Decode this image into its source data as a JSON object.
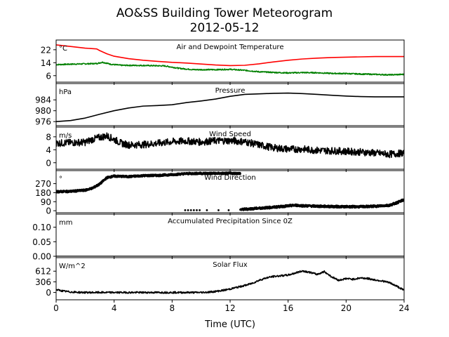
{
  "chart_data": {
    "type": "line",
    "title": "AO&SS Building Tower Meteorogram",
    "subtitle": "2012-05-12",
    "xlabel": "Time (UTC)",
    "xlim": [
      0,
      24
    ],
    "xticks": [
      "0",
      "4",
      "8",
      "12",
      "16",
      "20",
      "24"
    ],
    "panels": [
      {
        "id": "temp",
        "title": "Air and Dewpoint Temperature",
        "unit": "°C",
        "ylim": [
          2,
          28
        ],
        "yticks": [
          {
            "v": 6,
            "label": "6"
          },
          {
            "v": 14,
            "label": "14"
          },
          {
            "v": 22,
            "label": "22"
          }
        ],
        "series": [
          {
            "color": "#ff0000",
            "style": "line",
            "x": [
              0,
              1,
              2,
              2.8,
              3,
              3.5,
              4,
              5,
              6,
              7,
              8,
              9,
              10,
              11,
              12,
              13,
              14,
              15,
              16,
              17,
              18,
              19,
              20,
              21,
              22,
              23,
              24
            ],
            "y": [
              25,
              24,
              23,
              22.5,
              21.5,
              19.5,
              18,
              16.5,
              15.5,
              14.8,
              14.2,
              13.8,
              13.2,
              12.6,
              12.2,
              12.4,
              13.3,
              14.5,
              15.5,
              16.3,
              16.8,
              17.2,
              17.4,
              17.6,
              17.8,
              17.8,
              17.8
            ]
          },
          {
            "color": "#008000",
            "style": "line",
            "noise": 0.35,
            "x": [
              0,
              1,
              2,
              2.8,
              3.2,
              3.8,
              4.5,
              6,
              7.5,
              8.5,
              9.5,
              11,
              12,
              13,
              14,
              15,
              16,
              17,
              18,
              19,
              20,
              21,
              22,
              23,
              24
            ],
            "y": [
              12.8,
              13.1,
              13.3,
              13.5,
              14.3,
              13.0,
              12.4,
              12.3,
              12.0,
              10.5,
              9.7,
              9.7,
              9.9,
              9.3,
              8.4,
              8.0,
              7.7,
              7.9,
              7.8,
              7.4,
              7.3,
              7.0,
              6.8,
              6.5,
              6.8
            ]
          }
        ]
      },
      {
        "id": "pressure",
        "title": "Pressure",
        "unit": "hPa",
        "ylim": [
          974.5,
          990
        ],
        "yticks": [
          {
            "v": 976,
            "label": "976"
          },
          {
            "v": 980,
            "label": "980"
          },
          {
            "v": 984,
            "label": "984"
          }
        ],
        "series": [
          {
            "color": "#000000",
            "style": "line",
            "x": [
              0,
              1,
              2,
              3,
              4,
              5,
              6,
              7,
              8,
              9,
              10,
              11,
              12,
              13,
              14,
              15,
              16,
              17,
              18,
              19,
              20,
              21,
              22,
              23,
              24
            ],
            "y": [
              976,
              976.4,
              977.3,
              978.7,
              980.0,
              981.0,
              981.7,
              981.9,
              982.2,
              983.0,
              983.6,
              984.3,
              985.3,
              986.0,
              986.2,
              986.4,
              986.5,
              986.3,
              986.0,
              985.7,
              985.4,
              985.2,
              985.1,
              985.1,
              985.1
            ]
          }
        ]
      },
      {
        "id": "wind_speed",
        "title": "Wind Speed",
        "unit": "m/s",
        "ylim": [
          -2,
          11
        ],
        "yticks": [
          {
            "v": 0,
            "label": "0"
          },
          {
            "v": 4,
            "label": "4"
          },
          {
            "v": 8,
            "label": "8"
          }
        ],
        "series": [
          {
            "color": "#000000",
            "style": "line",
            "noise": 1.1,
            "x": [
              0,
              1,
              2,
              2.5,
              3,
              3.5,
              4,
              4.5,
              5,
              6,
              7,
              8,
              9,
              10,
              11,
              12,
              13,
              14,
              15,
              16,
              17,
              18,
              19,
              20,
              21,
              22,
              23,
              24
            ],
            "y": [
              6.0,
              6.2,
              6.3,
              7.2,
              7.8,
              8.3,
              7.2,
              6.0,
              5.5,
              5.6,
              6.0,
              6.5,
              6.7,
              6.4,
              6.8,
              6.8,
              6.5,
              5.5,
              4.6,
              4.2,
              4.2,
              3.8,
              3.7,
              3.5,
              3.3,
              3.0,
              2.6,
              3.0
            ]
          }
        ]
      },
      {
        "id": "wind_dir",
        "title": "Wind Direction",
        "unit": "°",
        "ylim": [
          -20,
          400
        ],
        "yticks": [
          {
            "v": 0,
            "label": "0"
          },
          {
            "v": 90,
            "label": "90"
          },
          {
            "v": 180,
            "label": "180"
          },
          {
            "v": 270,
            "label": "270"
          }
        ],
        "series": [
          {
            "color": "#000000",
            "style": "dots",
            "noise": 9,
            "x": [
              0,
              1,
              2,
              2.5,
              3,
              3.5,
              4,
              5,
              6,
              7,
              8,
              9,
              10,
              11,
              12,
              12.7
            ],
            "y": [
              190,
              193,
              205,
              225,
              265,
              330,
              345,
              340,
              350,
              352,
              360,
              370,
              372,
              372,
              372,
              372
            ]
          },
          {
            "color": "#000000",
            "style": "dots",
            "noise": 10,
            "x": [
              12.7,
              13,
              14,
              15,
              16,
              16.5,
              17,
              18,
              19,
              20,
              21,
              22,
              23,
              23.5,
              24
            ],
            "y": [
              10,
              15,
              25,
              35,
              48,
              55,
              50,
              45,
              42,
              40,
              40,
              45,
              55,
              80,
              110
            ]
          },
          {
            "color": "#000000",
            "style": "dots",
            "noise": 0,
            "x": [
              8.9,
              9.1,
              9.3,
              9.5,
              9.7,
              9.9,
              10.4,
              11.2,
              11.9
            ],
            "y": [
              5,
              5,
              5,
              5,
              5,
              5,
              5,
              5,
              5
            ]
          }
        ]
      },
      {
        "id": "precip",
        "title": "Accumulated Precipitation Since 0Z",
        "unit": "mm",
        "ylim": [
          0,
          0.145
        ],
        "yticks": [
          {
            "v": 0,
            "label": "0.00"
          },
          {
            "v": 0.05,
            "label": "0.05"
          },
          {
            "v": 0.1,
            "label": "0.10"
          }
        ],
        "series": [
          {
            "color": "#000000",
            "style": "line",
            "x": [
              0,
              24
            ],
            "y": [
              0,
              0
            ]
          }
        ]
      },
      {
        "id": "solar",
        "title": "Solar Flux",
        "unit": "W/m^2",
        "ylim": [
          -210,
          1000
        ],
        "yticks": [
          {
            "v": 0,
            "label": "0"
          },
          {
            "v": 306,
            "label": "306"
          },
          {
            "v": 612,
            "label": "612"
          }
        ],
        "series": [
          {
            "color": "#000000",
            "style": "line",
            "noise": 25,
            "x": [
              0,
              0.5,
              1,
              1.5,
              2,
              3,
              4,
              5,
              6,
              7,
              8,
              9,
              10,
              10.5,
              11,
              11.5,
              12,
              12.5,
              13,
              13.5,
              14,
              14.5,
              15,
              15.5,
              16,
              16.5,
              17,
              17.5,
              18,
              18.5,
              19,
              19.5,
              20,
              20.5,
              21,
              21.5,
              22,
              22.5,
              23,
              23.5,
              24
            ],
            "y": [
              80,
              40,
              15,
              5,
              0,
              0,
              0,
              0,
              0,
              0,
              0,
              0,
              0,
              10,
              30,
              60,
              100,
              150,
              200,
              260,
              350,
              420,
              460,
              480,
              500,
              560,
              620,
              580,
              520,
              600,
              450,
              350,
              400,
              380,
              420,
              400,
              360,
              330,
              280,
              180,
              60
            ]
          }
        ]
      }
    ]
  }
}
